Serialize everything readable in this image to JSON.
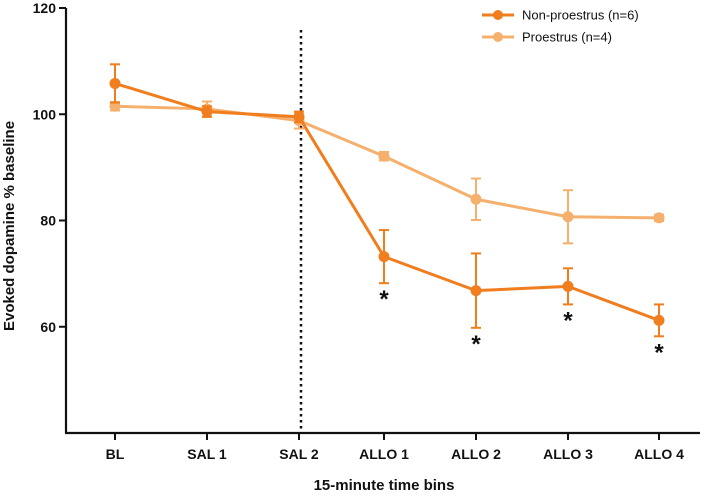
{
  "chart_data": {
    "type": "line",
    "title": "",
    "xlabel": "15-minute time bins",
    "ylabel": "Evoked dopamine % baseline",
    "categories": [
      "BL",
      "SAL 1",
      "SAL 2",
      "ALLO 1",
      "ALLO 2",
      "ALLO 3",
      "ALLO 4"
    ],
    "ylim": [
      40,
      120
    ],
    "yticks": [
      60,
      80,
      100,
      120
    ],
    "legend_position": "top-right",
    "divider_after_category": "SAL 2",
    "series": [
      {
        "name": "Non-proestrus (n=6)",
        "color": "#f07d1e",
        "values": [
          105.8,
          100.5,
          99.5,
          73.2,
          66.8,
          67.6,
          61.2
        ],
        "errors": [
          3.6,
          1.0,
          1.0,
          5.0,
          7.0,
          3.4,
          3.0
        ],
        "significance": [
          "",
          "",
          "",
          "*",
          "*",
          "*",
          "*"
        ]
      },
      {
        "name": "Proestrus (n=4)",
        "color": "#f5b06e",
        "values": [
          101.5,
          101.0,
          98.8,
          92.1,
          84.0,
          80.7,
          80.5
        ],
        "errors": [
          0.8,
          1.4,
          1.5,
          0.8,
          3.9,
          5.0,
          0.6
        ],
        "significance": [
          "",
          "",
          "",
          "",
          "",
          "",
          ""
        ]
      }
    ]
  }
}
